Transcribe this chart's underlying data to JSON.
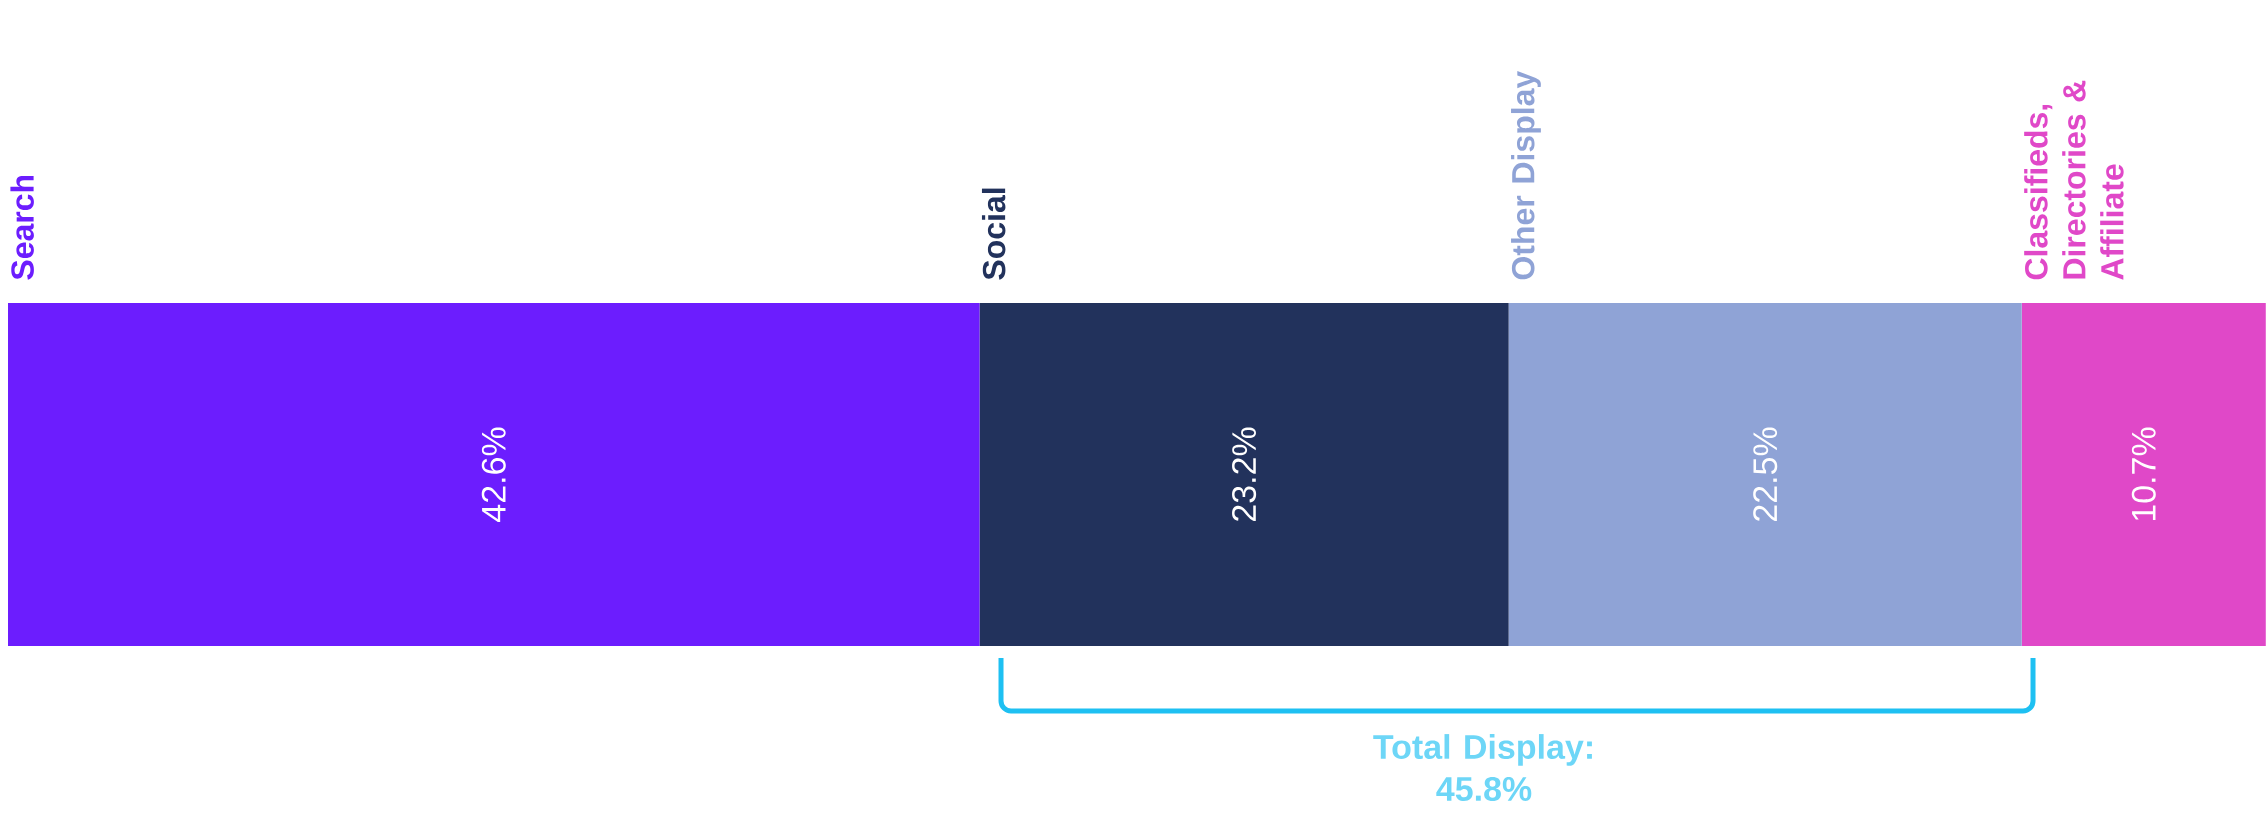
{
  "chart_data": {
    "type": "bar",
    "orientation": "horizontal",
    "stacked": true,
    "categories": [
      null
    ],
    "tick_labels": false,
    "series": [
      {
        "name": "Search",
        "color": "#6c1dfe",
        "values": [
          42.6
        ],
        "value_labels": [
          "42.6%"
        ]
      },
      {
        "name": "Social",
        "color": "#22325c",
        "values": [
          23.2
        ],
        "value_labels": [
          "23.2%"
        ]
      },
      {
        "name": "Other Display",
        "color": "#8fa3d6",
        "values": [
          22.5
        ],
        "value_labels": [
          "22.5%"
        ]
      },
      {
        "name": "Classifieds, Directories & Affiliate",
        "color": "#e048c8",
        "values": [
          10.7
        ],
        "value_labels": [
          "10.7%"
        ]
      }
    ],
    "annotations": [
      "Total Display: 45.8%"
    ]
  }
}
